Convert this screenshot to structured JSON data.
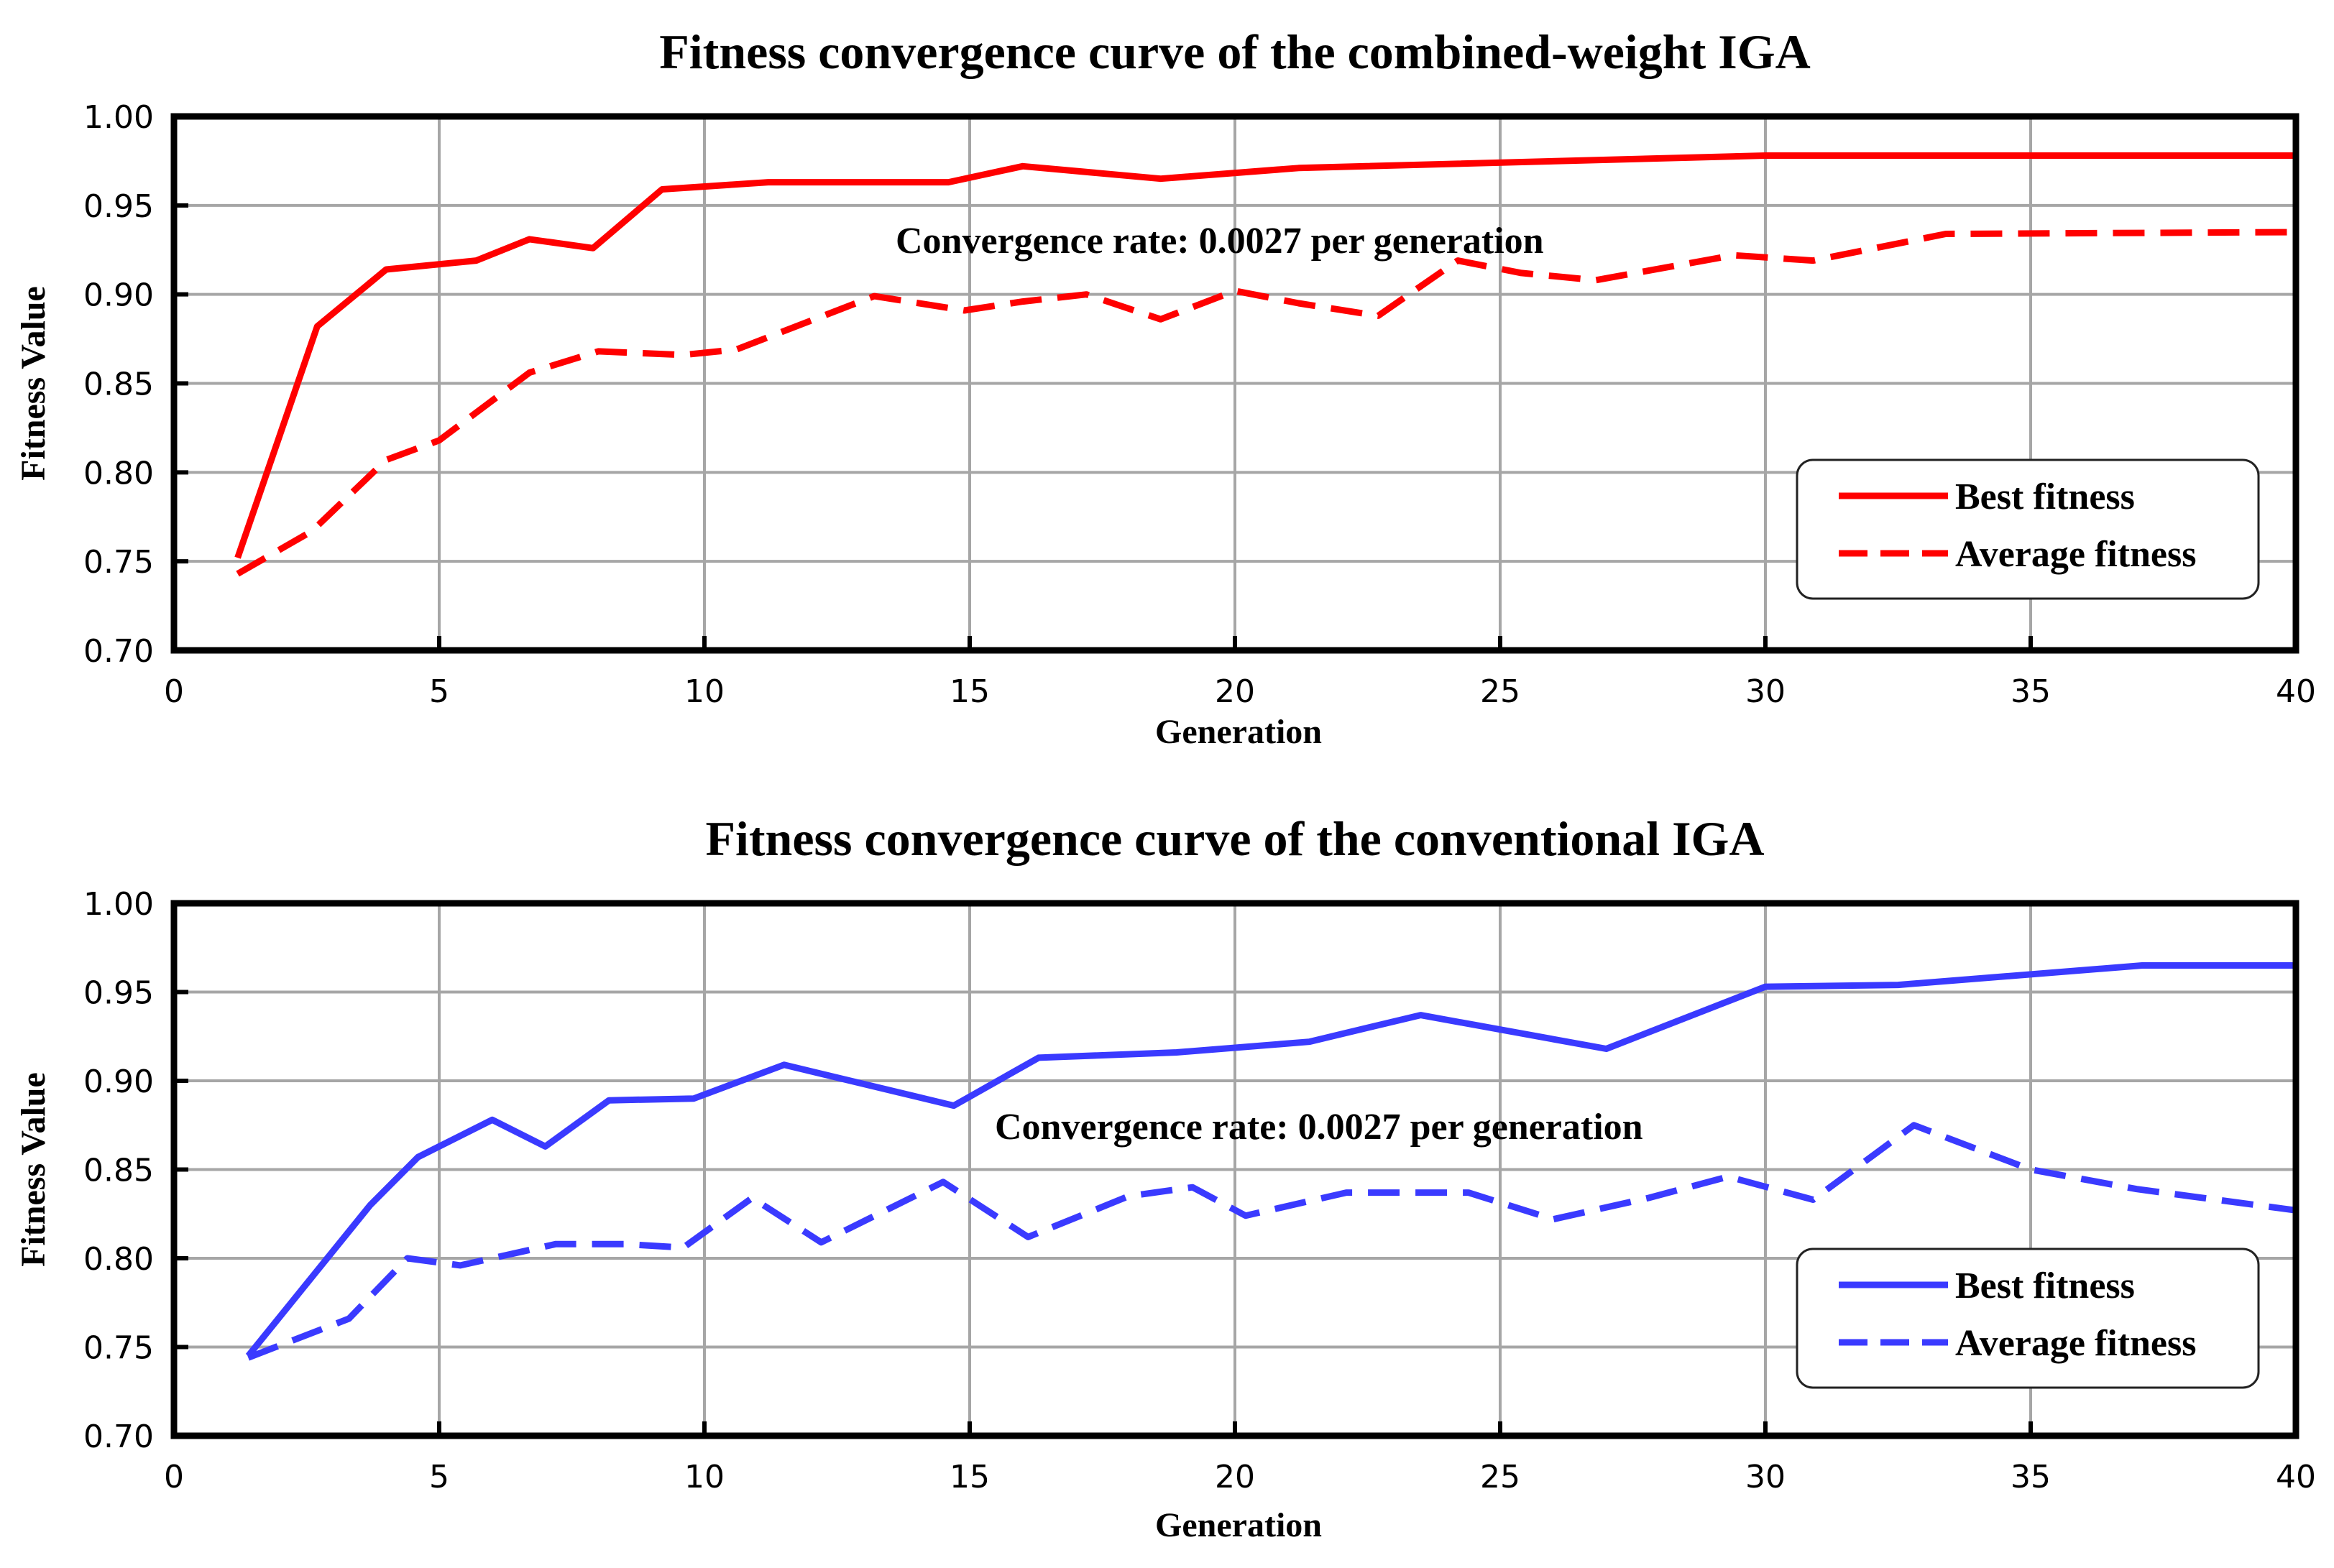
{
  "chart_data": [
    {
      "type": "line",
      "title": "Fitness convergence curve of the combined-weight IGA",
      "xlabel": "Generation",
      "ylabel": "Fitness Value",
      "xlim": [
        0,
        40
      ],
      "ylim": [
        0.7,
        1.0
      ],
      "x_ticks": [
        0,
        5,
        10,
        15,
        20,
        25,
        30,
        35,
        40
      ],
      "y_ticks": [
        "0.70",
        "0.75",
        "0.80",
        "0.85",
        "0.90",
        "0.95",
        "1.00"
      ],
      "grid": true,
      "legend_position": "bottom-right",
      "annotation": "Convergence rate: 0.0027 per generation",
      "series": [
        {
          "name": "Best fitness",
          "color": "#ff0000",
          "style": "solid",
          "x": [
            1.2,
            2.7,
            4.0,
            5.7,
            6.7,
            7.9,
            9.2,
            11.2,
            14.6,
            16.0,
            18.6,
            21.2,
            30.0,
            40.0
          ],
          "y": [
            0.752,
            0.882,
            0.914,
            0.919,
            0.931,
            0.926,
            0.959,
            0.963,
            0.963,
            0.972,
            0.965,
            0.971,
            0.978,
            0.978
          ]
        },
        {
          "name": "Average fitness",
          "color": "#ff0000",
          "style": "dashed",
          "x": [
            1.2,
            2.6,
            4.0,
            5.0,
            6.7,
            8.0,
            9.6,
            10.6,
            13.2,
            14.9,
            16.0,
            17.2,
            18.6,
            20.0,
            21.2,
            22.7,
            24.2,
            25.4,
            26.8,
            29.4,
            30.9,
            33.4,
            40.0
          ],
          "y": [
            0.743,
            0.767,
            0.807,
            0.818,
            0.856,
            0.868,
            0.866,
            0.869,
            0.899,
            0.891,
            0.896,
            0.9,
            0.886,
            0.902,
            0.895,
            0.888,
            0.919,
            0.912,
            0.908,
            0.922,
            0.919,
            0.934,
            0.935
          ]
        }
      ]
    },
    {
      "type": "line",
      "title": "Fitness convergence curve of the conventional IGA",
      "xlabel": "Generation",
      "ylabel": "Fitness Value",
      "xlim": [
        0,
        40
      ],
      "ylim": [
        0.7,
        1.0
      ],
      "x_ticks": [
        0,
        5,
        10,
        15,
        20,
        25,
        30,
        35,
        40
      ],
      "y_ticks": [
        "0.70",
        "0.75",
        "0.80",
        "0.85",
        "0.90",
        "0.95",
        "1.00"
      ],
      "grid": true,
      "legend_position": "bottom-right",
      "annotation": "Convergence rate: 0.0027 per generation",
      "series": [
        {
          "name": "Best fitness",
          "color": "#3a3aff",
          "style": "solid",
          "x": [
            1.4,
            3.7,
            4.6,
            6.0,
            7.0,
            8.2,
            9.8,
            11.5,
            14.7,
            16.3,
            18.9,
            21.4,
            23.5,
            27.0,
            30.0,
            32.5,
            37.1,
            40.0
          ],
          "y": [
            0.745,
            0.83,
            0.857,
            0.878,
            0.863,
            0.889,
            0.89,
            0.909,
            0.886,
            0.913,
            0.916,
            0.922,
            0.937,
            0.918,
            0.953,
            0.954,
            0.965,
            0.965
          ]
        },
        {
          "name": "Average fitness",
          "color": "#3a3aff",
          "style": "dashed",
          "x": [
            1.4,
            3.3,
            4.4,
            5.4,
            7.2,
            8.5,
            9.6,
            10.9,
            12.2,
            14.5,
            16.1,
            18.0,
            19.2,
            20.2,
            22.1,
            24.4,
            26.0,
            27.8,
            29.3,
            30.9,
            32.8,
            35.0,
            37.0,
            40.0
          ],
          "y": [
            0.744,
            0.766,
            0.8,
            0.796,
            0.808,
            0.808,
            0.806,
            0.834,
            0.809,
            0.843,
            0.812,
            0.835,
            0.84,
            0.824,
            0.837,
            0.837,
            0.822,
            0.834,
            0.846,
            0.833,
            0.875,
            0.85,
            0.839,
            0.827
          ]
        }
      ]
    }
  ]
}
